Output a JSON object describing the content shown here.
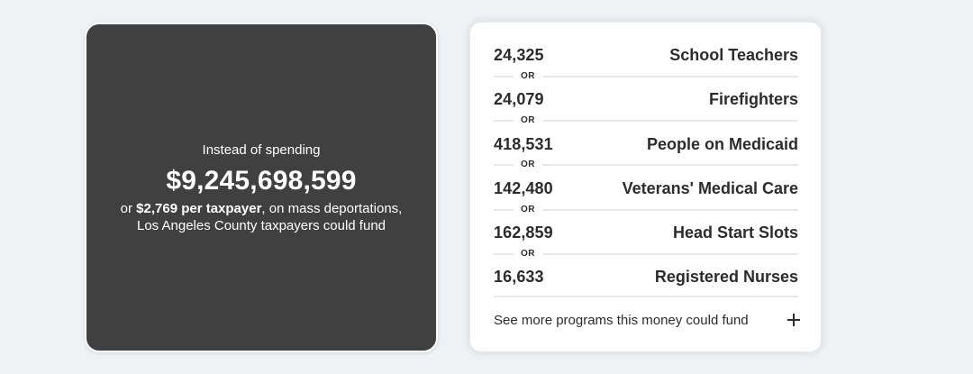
{
  "summary": {
    "intro": "Instead of spending",
    "amount": "$9,245,698,599",
    "prefix": "or ",
    "per_taxpayer": "$2,769 per taxpayer",
    "suffix": ", on mass deportations,",
    "line2": "Los Angeles County taxpayers could fund"
  },
  "programs": [
    {
      "count": "24,325",
      "label": "School Teachers"
    },
    {
      "count": "24,079",
      "label": "Firefighters"
    },
    {
      "count": "418,531",
      "label": "People on Medicaid"
    },
    {
      "count": "142,480",
      "label": "Veterans' Medical Care"
    },
    {
      "count": "162,859",
      "label": "Head Start Slots"
    },
    {
      "count": "16,633",
      "label": "Registered Nurses"
    }
  ],
  "separator_label": "OR",
  "see_more": {
    "label": "See more programs this money could fund",
    "icon": "plus-icon"
  },
  "colors": {
    "dark_card": "#404040",
    "page_bg": "#eef2f5",
    "text": "#2c2c2c"
  }
}
